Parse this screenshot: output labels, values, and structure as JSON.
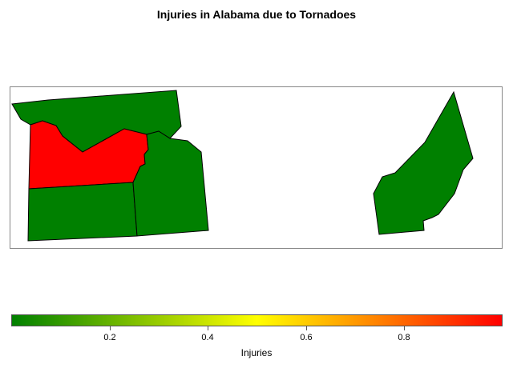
{
  "title": "Injuries in Alabama due to Tornadoes",
  "colors": {
    "low": "#008000",
    "mid": "#ffff00",
    "high": "#ff0000",
    "frame": "#888888"
  },
  "map": {
    "regions": [
      {
        "id": "north-west-county",
        "value": 0
      },
      {
        "id": "red-county",
        "value": 1
      },
      {
        "id": "south-west-county",
        "value": 0
      },
      {
        "id": "middle-county",
        "value": 0
      },
      {
        "id": "east-county",
        "value": 0
      }
    ]
  },
  "legend": {
    "label": "Injuries",
    "range": [
      0,
      1
    ],
    "ticks": [
      "0.2",
      "0.4",
      "0.6",
      "0.8"
    ]
  }
}
